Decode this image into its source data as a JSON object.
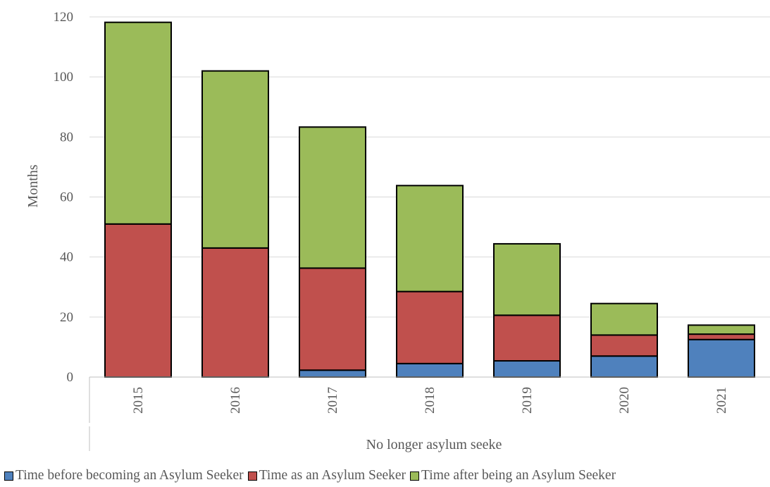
{
  "chart_data": {
    "type": "bar",
    "stacked": true,
    "categories": [
      "2015",
      "2016",
      "2017",
      "2018",
      "2019",
      "2020",
      "2021"
    ],
    "series": [
      {
        "name": "Time before becoming an Asylum Seeker",
        "color": "#4f81bd",
        "values": [
          0,
          0,
          2.3,
          4.5,
          5.4,
          7.0,
          12.5
        ]
      },
      {
        "name": "Time as an Asylum Seeker",
        "color": "#c0504d",
        "values": [
          51.0,
          43.0,
          34.0,
          24.0,
          15.2,
          7.0,
          1.8
        ]
      },
      {
        "name": "Time after being an Asylum Seeker",
        "color": "#9bbb59",
        "values": [
          67.2,
          59.0,
          47.0,
          35.3,
          23.8,
          10.5,
          3.0
        ]
      }
    ],
    "ylabel": "Months",
    "xlabel": "No longer asylum seeke",
    "ylim": [
      0,
      120
    ],
    "yticks": [
      0,
      20,
      40,
      60,
      80,
      100,
      120
    ],
    "grid": true,
    "legend_position": "bottom"
  }
}
